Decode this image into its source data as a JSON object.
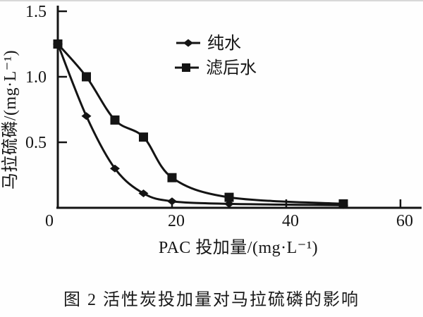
{
  "figure": {
    "caption": "图 2  活性炭投加量对马拉硫磷的影响"
  },
  "chart_data": {
    "type": "line",
    "title": "",
    "xlabel": "PAC 投加量/(mg·L⁻¹)",
    "ylabel": "马拉硫磷/(mg·L⁻¹)",
    "xlim": [
      0,
      63
    ],
    "ylim": [
      0,
      1.5
    ],
    "x_ticks": [
      0,
      20,
      40,
      60
    ],
    "y_ticks": [
      0.5,
      1.0,
      1.5
    ],
    "grid": false,
    "legend_position": "upper center inside",
    "line_color": "#141414",
    "background_color": "#fefefe",
    "series": [
      {
        "name": "纯水",
        "marker": "diamond",
        "x": [
          0,
          5,
          10,
          15,
          20,
          30,
          50
        ],
        "y": [
          1.25,
          0.7,
          0.3,
          0.11,
          0.05,
          0.03,
          0.02
        ]
      },
      {
        "name": "滤后水",
        "marker": "square",
        "x": [
          0,
          5,
          10,
          15,
          20,
          30,
          50
        ],
        "y": [
          1.25,
          1.0,
          0.67,
          0.54,
          0.23,
          0.08,
          0.03
        ]
      }
    ]
  }
}
